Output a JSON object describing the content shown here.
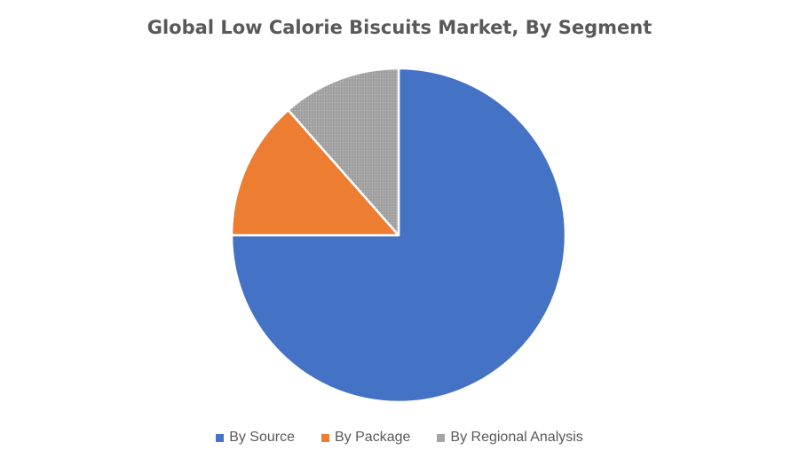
{
  "chart_data": {
    "type": "pie",
    "title": "Global Low Calorie Biscuits Market, By Segment",
    "categories": [
      "By Source",
      "By Package",
      "By Regional Analysis"
    ],
    "values": [
      75,
      13.5,
      11.5
    ],
    "colors": [
      "#4472C4",
      "#ED7D31",
      "#A5A5A5"
    ],
    "start_angle_deg": 0,
    "direction": "clockwise",
    "legend_position": "bottom"
  }
}
